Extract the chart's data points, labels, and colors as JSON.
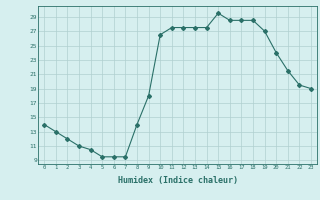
{
  "x": [
    0,
    1,
    2,
    3,
    4,
    5,
    6,
    7,
    8,
    9,
    10,
    11,
    12,
    13,
    14,
    15,
    16,
    17,
    18,
    19,
    20,
    21,
    22,
    23
  ],
  "y": [
    14,
    13,
    12,
    11,
    10.5,
    9.5,
    9.5,
    9.5,
    14,
    18,
    26.5,
    27.5,
    27.5,
    27.5,
    27.5,
    29.5,
    28.5,
    28.5,
    28.5,
    27,
    24,
    21.5,
    19.5,
    19
  ],
  "xlabel": "Humidex (Indice chaleur)",
  "line_color": "#2a7068",
  "marker": "D",
  "marker_size": 2,
  "bg_color": "#d6efef",
  "grid_color": "#b0d0d0",
  "tick_color": "#2a7068",
  "ylim": [
    8.5,
    30.5
  ],
  "xlim": [
    -0.5,
    23.5
  ],
  "yticks": [
    9,
    11,
    13,
    15,
    17,
    19,
    21,
    23,
    25,
    27,
    29
  ],
  "xticks": [
    0,
    1,
    2,
    3,
    4,
    5,
    6,
    7,
    8,
    9,
    10,
    11,
    12,
    13,
    14,
    15,
    16,
    17,
    18,
    19,
    20,
    21,
    22,
    23
  ]
}
